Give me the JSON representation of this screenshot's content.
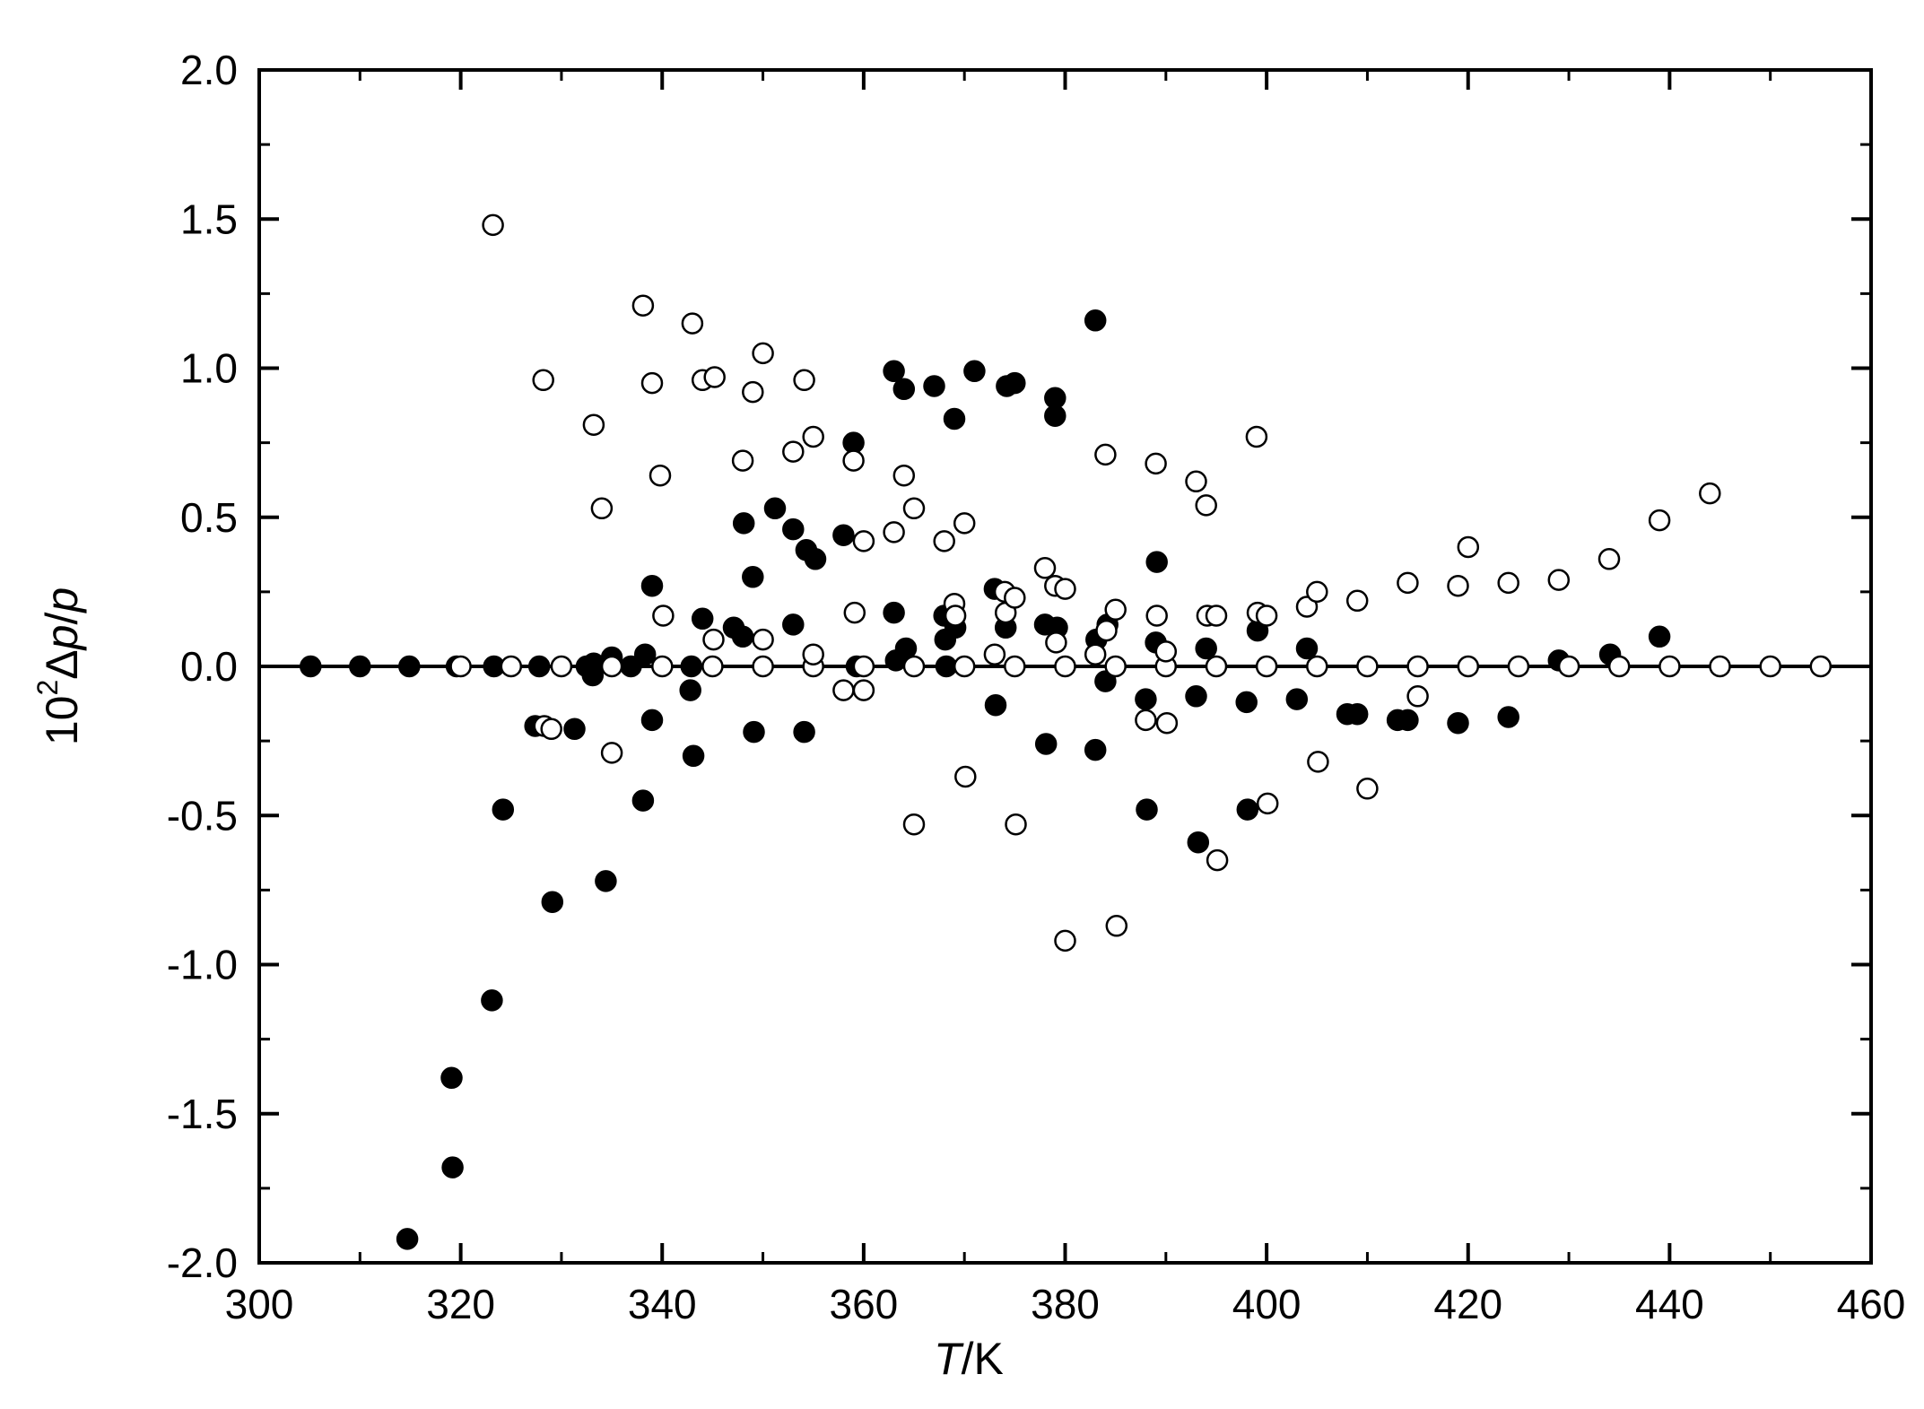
{
  "chart_data": {
    "type": "scatter",
    "title": "",
    "xlabel_main": "T",
    "xlabel_unit": "/K",
    "ylabel_prefix": "10",
    "ylabel_exp": "2",
    "ylabel_delta": "Δ",
    "ylabel_p1": "p",
    "ylabel_slash": "/",
    "ylabel_p2": "p",
    "xlim": [
      300,
      460
    ],
    "ylim": [
      -2.0,
      2.0
    ],
    "xticks": [
      "300",
      "320",
      "340",
      "360",
      "380",
      "400",
      "420",
      "440",
      "460"
    ],
    "yticks": [
      "-2.0",
      "-1.5",
      "-1.0",
      "-0.5",
      "0.0",
      "0.5",
      "1.0",
      "1.5",
      "2.0"
    ],
    "zero_line": true,
    "grid": false,
    "series": [
      {
        "marker": "filled-circle",
        "points": [
          [
            305.1,
            0.0
          ],
          [
            310.0,
            0.0
          ],
          [
            314.9,
            0.0
          ],
          [
            319.6,
            0.0
          ],
          [
            323.3,
            0.0
          ],
          [
            327.8,
            0.0
          ],
          [
            314.7,
            -1.92
          ],
          [
            319.2,
            -1.68
          ],
          [
            319.1,
            -1.38
          ],
          [
            323.1,
            -1.12
          ],
          [
            324.2,
            -0.48
          ],
          [
            327.4,
            -0.2
          ],
          [
            329.1,
            -0.79
          ],
          [
            331.3,
            -0.21
          ],
          [
            332.5,
            0.0
          ],
          [
            333.1,
            -0.03
          ],
          [
            333.2,
            0.01
          ],
          [
            334.4,
            -0.72
          ],
          [
            335.0,
            0.03
          ],
          [
            336.9,
            0.0
          ],
          [
            338.1,
            -0.45
          ],
          [
            338.3,
            0.04
          ],
          [
            339.0,
            0.27
          ],
          [
            339.0,
            -0.18
          ],
          [
            342.8,
            -0.08
          ],
          [
            342.9,
            0.0
          ],
          [
            343.1,
            -0.3
          ],
          [
            344.0,
            0.16
          ],
          [
            347.1,
            0.13
          ],
          [
            348.0,
            0.1
          ],
          [
            348.1,
            0.48
          ],
          [
            349.0,
            0.3
          ],
          [
            349.1,
            -0.22
          ],
          [
            351.2,
            0.53
          ],
          [
            353.0,
            0.46
          ],
          [
            353.0,
            0.14
          ],
          [
            354.1,
            -0.22
          ],
          [
            354.3,
            0.39
          ],
          [
            355.2,
            0.36
          ],
          [
            358.0,
            0.44
          ],
          [
            359.0,
            0.75
          ],
          [
            359.3,
            0.0
          ],
          [
            363.0,
            0.99
          ],
          [
            363.0,
            0.18
          ],
          [
            363.2,
            0.02
          ],
          [
            364.0,
            0.93
          ],
          [
            364.2,
            0.06
          ],
          [
            367.0,
            0.94
          ],
          [
            368.0,
            0.17
          ],
          [
            368.1,
            0.09
          ],
          [
            368.2,
            0.0
          ],
          [
            369.0,
            0.83
          ],
          [
            369.1,
            0.13
          ],
          [
            371.0,
            0.99
          ],
          [
            373.0,
            0.26
          ],
          [
            373.1,
            -0.13
          ],
          [
            374.1,
            0.13
          ],
          [
            374.2,
            0.94
          ],
          [
            375.0,
            0.95
          ],
          [
            378.0,
            0.14
          ],
          [
            378.1,
            -0.26
          ],
          [
            379.0,
            0.9
          ],
          [
            379.0,
            0.84
          ],
          [
            379.2,
            0.13
          ],
          [
            383.0,
            1.16
          ],
          [
            383.0,
            -0.28
          ],
          [
            383.1,
            0.09
          ],
          [
            384.0,
            -0.05
          ],
          [
            384.2,
            0.14
          ],
          [
            388.0,
            -0.11
          ],
          [
            388.1,
            -0.48
          ],
          [
            389.0,
            0.08
          ],
          [
            389.1,
            0.35
          ],
          [
            393.0,
            -0.1
          ],
          [
            393.2,
            -0.59
          ],
          [
            394.0,
            0.06
          ],
          [
            398.0,
            -0.12
          ],
          [
            398.1,
            -0.48
          ],
          [
            399.1,
            0.12
          ],
          [
            403.0,
            -0.11
          ],
          [
            404.0,
            0.06
          ],
          [
            408.0,
            -0.16
          ],
          [
            409.0,
            -0.16
          ],
          [
            413.0,
            -0.18
          ],
          [
            414.0,
            -0.18
          ],
          [
            419.0,
            -0.19
          ],
          [
            424.0,
            -0.17
          ],
          [
            429.0,
            0.02
          ],
          [
            434.1,
            0.04
          ],
          [
            439.0,
            0.1
          ]
        ]
      },
      {
        "marker": "open-circle",
        "points": [
          [
            320.0,
            0.0
          ],
          [
            325.0,
            0.0
          ],
          [
            330.0,
            0.0
          ],
          [
            335.0,
            0.0
          ],
          [
            340.0,
            0.0
          ],
          [
            345.0,
            0.0
          ],
          [
            350.0,
            0.0
          ],
          [
            355.0,
            0.0
          ],
          [
            360.0,
            0.0
          ],
          [
            365.0,
            0.0
          ],
          [
            370.0,
            0.0
          ],
          [
            375.0,
            0.0
          ],
          [
            380.0,
            0.0
          ],
          [
            385.0,
            0.0
          ],
          [
            390.0,
            0.0
          ],
          [
            395.0,
            0.0
          ],
          [
            400.0,
            0.0
          ],
          [
            405.0,
            0.0
          ],
          [
            410.0,
            0.0
          ],
          [
            415.0,
            0.0
          ],
          [
            420.0,
            0.0
          ],
          [
            425.0,
            0.0
          ],
          [
            430.0,
            0.0
          ],
          [
            435.0,
            0.0
          ],
          [
            440.0,
            0.0
          ],
          [
            445.0,
            0.0
          ],
          [
            450.0,
            0.0
          ],
          [
            455.0,
            0.0
          ],
          [
            323.2,
            1.48
          ],
          [
            328.2,
            0.96
          ],
          [
            328.3,
            -0.2
          ],
          [
            329.0,
            -0.21
          ],
          [
            333.2,
            0.81
          ],
          [
            334.0,
            0.53
          ],
          [
            335.0,
            -0.29
          ],
          [
            338.1,
            1.21
          ],
          [
            339.0,
            0.95
          ],
          [
            339.8,
            0.64
          ],
          [
            340.1,
            0.17
          ],
          [
            343.0,
            1.15
          ],
          [
            344.0,
            0.96
          ],
          [
            345.2,
            0.97
          ],
          [
            345.1,
            0.09
          ],
          [
            348.0,
            0.69
          ],
          [
            349.0,
            0.92
          ],
          [
            350.0,
            1.05
          ],
          [
            350.0,
            0.09
          ],
          [
            353.0,
            0.72
          ],
          [
            354.1,
            0.96
          ],
          [
            355.0,
            0.77
          ],
          [
            355.0,
            0.04
          ],
          [
            358.0,
            -0.08
          ],
          [
            359.0,
            0.69
          ],
          [
            359.1,
            0.18
          ],
          [
            360.0,
            0.42
          ],
          [
            360.0,
            -0.08
          ],
          [
            363.0,
            0.45
          ],
          [
            364.0,
            0.64
          ],
          [
            365.0,
            0.53
          ],
          [
            365.0,
            -0.53
          ],
          [
            368.0,
            0.42
          ],
          [
            369.0,
            0.21
          ],
          [
            369.1,
            0.17
          ],
          [
            370.0,
            0.48
          ],
          [
            370.1,
            -0.37
          ],
          [
            373.0,
            0.04
          ],
          [
            374.0,
            0.25
          ],
          [
            374.1,
            0.18
          ],
          [
            375.0,
            0.23
          ],
          [
            375.1,
            -0.53
          ],
          [
            378.0,
            0.33
          ],
          [
            379.0,
            0.27
          ],
          [
            379.1,
            0.08
          ],
          [
            380.0,
            0.26
          ],
          [
            380.0,
            -0.92
          ],
          [
            383.0,
            0.04
          ],
          [
            384.0,
            0.71
          ],
          [
            384.1,
            0.12
          ],
          [
            385.0,
            0.19
          ],
          [
            385.1,
            -0.87
          ],
          [
            388.0,
            -0.18
          ],
          [
            389.0,
            0.68
          ],
          [
            389.1,
            0.17
          ],
          [
            390.0,
            0.05
          ],
          [
            390.1,
            -0.19
          ],
          [
            393.0,
            0.62
          ],
          [
            394.0,
            0.54
          ],
          [
            394.1,
            0.17
          ],
          [
            395.0,
            0.17
          ],
          [
            395.1,
            -0.65
          ],
          [
            399.0,
            0.77
          ],
          [
            399.1,
            0.18
          ],
          [
            400.0,
            0.17
          ],
          [
            400.1,
            -0.46
          ],
          [
            404.0,
            0.2
          ],
          [
            405.0,
            0.25
          ],
          [
            405.1,
            -0.32
          ],
          [
            409.0,
            0.22
          ],
          [
            410.0,
            -0.41
          ],
          [
            414.0,
            0.28
          ],
          [
            415.0,
            -0.1
          ],
          [
            419.0,
            0.27
          ],
          [
            420.0,
            0.4
          ],
          [
            424.0,
            0.28
          ],
          [
            429.0,
            0.29
          ],
          [
            434.0,
            0.36
          ],
          [
            439.0,
            0.49
          ],
          [
            444.0,
            0.58
          ]
        ]
      }
    ]
  }
}
